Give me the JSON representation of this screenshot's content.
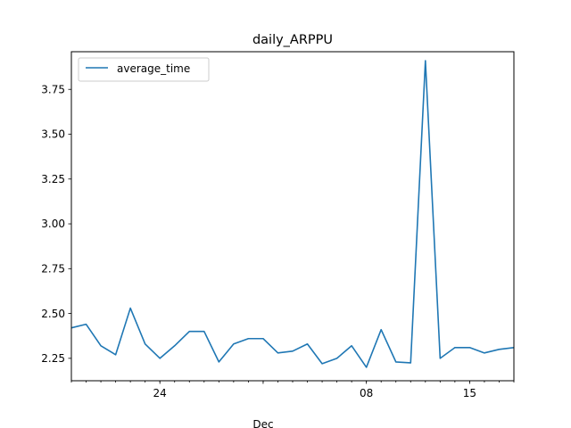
{
  "chart_data": {
    "type": "line",
    "title": "daily_ARPPU",
    "xlabel": "Dec",
    "ylabel": "",
    "x": [
      "2019-11-18",
      "2019-11-19",
      "2019-11-20",
      "2019-11-21",
      "2019-11-22",
      "2019-11-23",
      "2019-11-24",
      "2019-11-25",
      "2019-11-26",
      "2019-11-27",
      "2019-11-28",
      "2019-11-29",
      "2019-11-30",
      "2019-12-01",
      "2019-12-02",
      "2019-12-03",
      "2019-12-04",
      "2019-12-05",
      "2019-12-06",
      "2019-12-07",
      "2019-12-08",
      "2019-12-09",
      "2019-12-10",
      "2019-12-11",
      "2019-12-12",
      "2019-12-13",
      "2019-12-14",
      "2019-12-15",
      "2019-12-16",
      "2019-12-17",
      "2019-12-18"
    ],
    "series": [
      {
        "name": "average_time",
        "color": "#1f77b4",
        "values": [
          2.42,
          2.44,
          2.32,
          2.27,
          2.53,
          2.33,
          2.25,
          2.32,
          2.4,
          2.4,
          2.23,
          2.33,
          2.36,
          2.36,
          2.28,
          2.29,
          2.33,
          2.22,
          2.25,
          2.32,
          2.2,
          2.41,
          2.23,
          2.225,
          3.91,
          2.25,
          2.31,
          2.31,
          2.28,
          2.3,
          2.31
        ]
      }
    ],
    "xlim": [
      "2019-11-18",
      "2019-12-18"
    ],
    "ylim": [
      2.125,
      3.96
    ],
    "y_ticks": [
      2.25,
      2.5,
      2.75,
      3.0,
      3.25,
      3.5,
      3.75
    ],
    "y_tick_labels": [
      "2.25",
      "2.50",
      "2.75",
      "3.00",
      "3.25",
      "3.50",
      "3.75"
    ],
    "x_major_ticks": [
      {
        "date": "2019-11-24",
        "label": "24"
      },
      {
        "date": "2019-12-01",
        "label": ""
      },
      {
        "date": "2019-12-08",
        "label": "08"
      },
      {
        "date": "2019-12-15",
        "label": "15"
      }
    ],
    "x_minor_ticks": "daily",
    "grid": false,
    "legend": "upper left"
  }
}
